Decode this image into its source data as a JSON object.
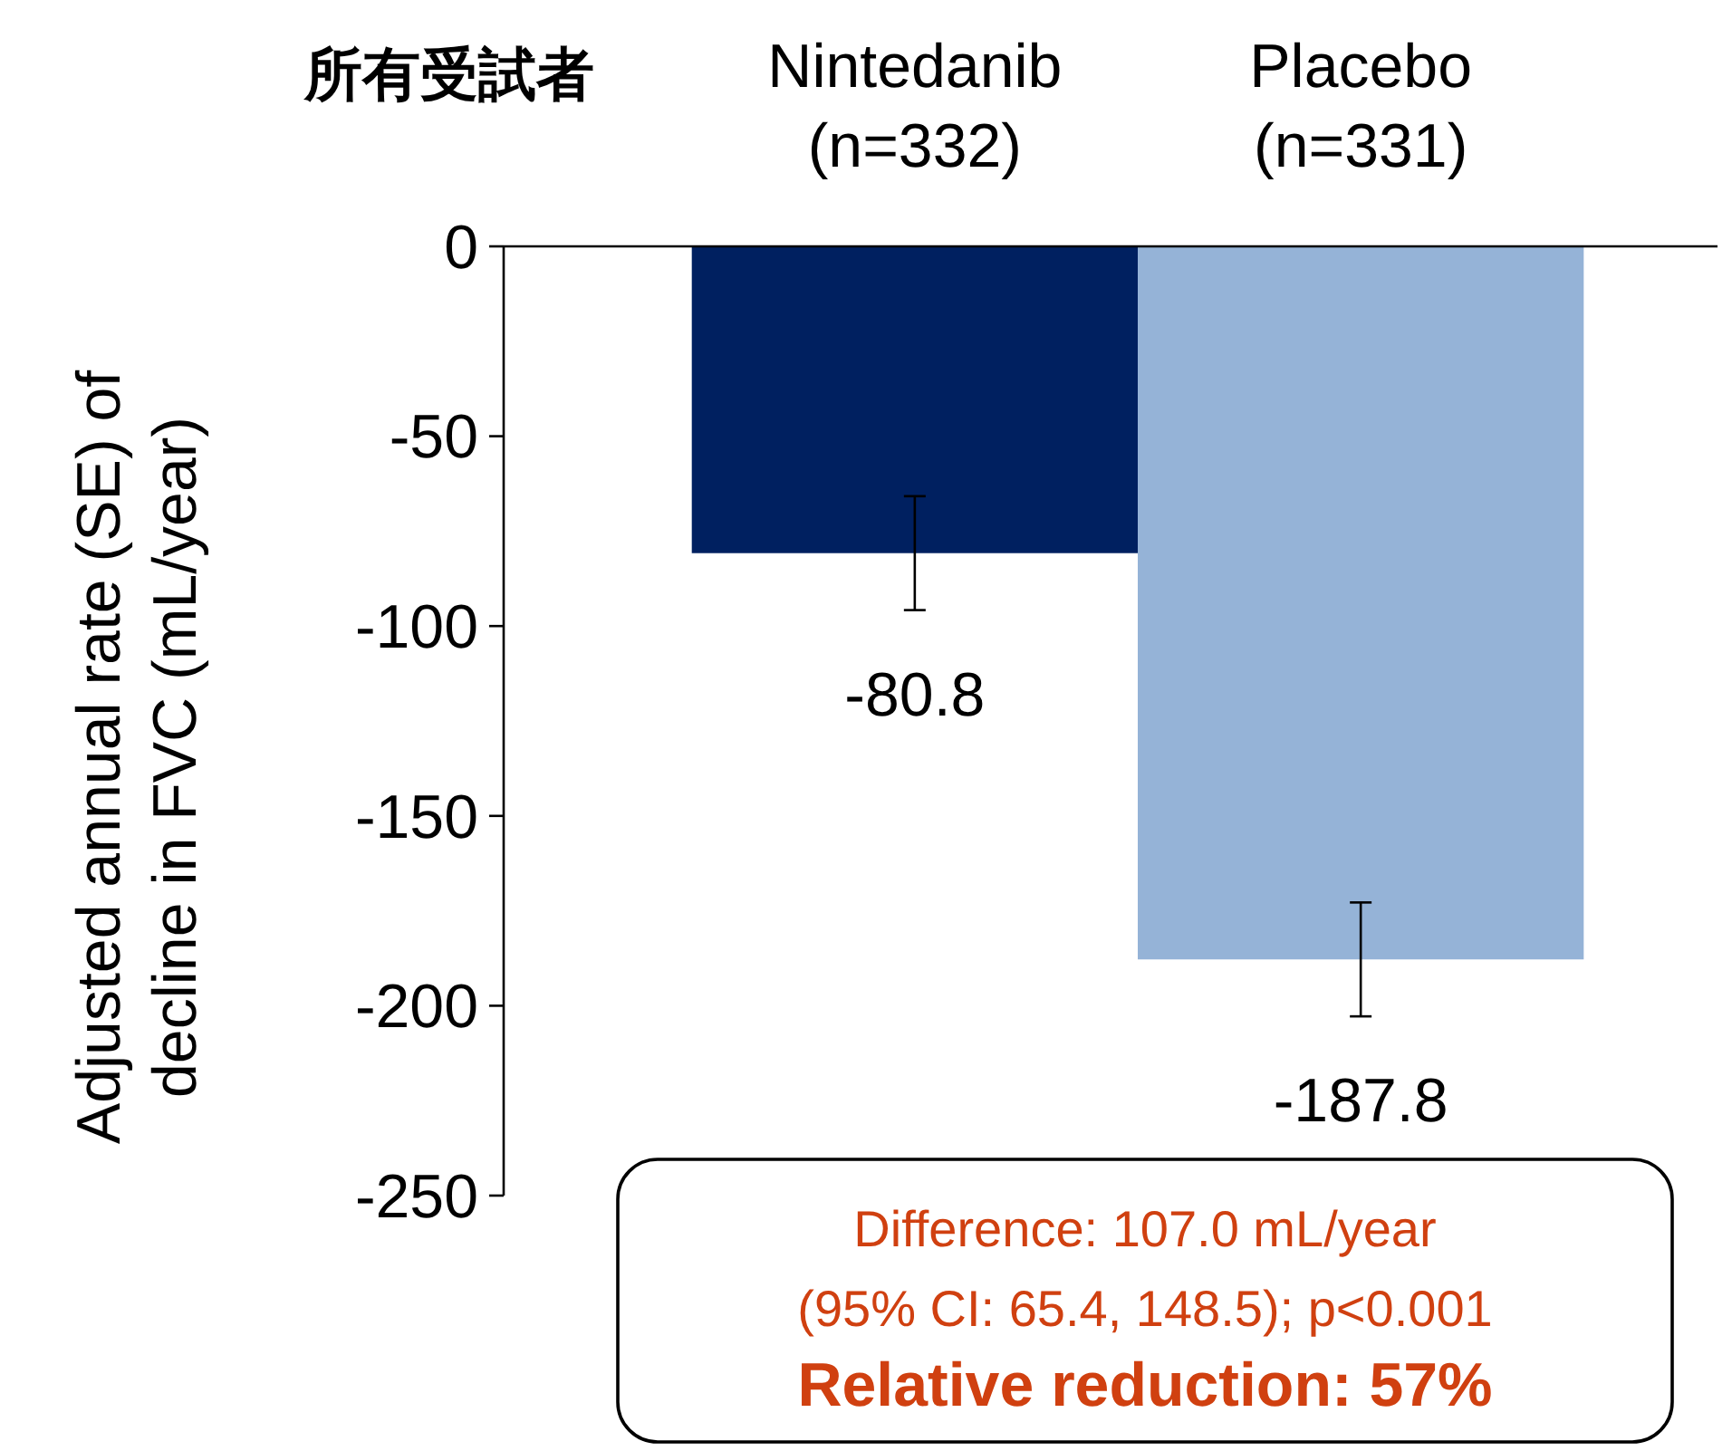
{
  "chart_data": {
    "type": "bar",
    "title": "所有受試者",
    "categories": [
      "Nintedanib\n(n=332)",
      "Placebo\n(n=331)"
    ],
    "values": [
      -80.8,
      -187.8
    ],
    "colors": [
      "#002060",
      "#95b3d7"
    ],
    "errors": [
      15,
      15
    ],
    "ylabel": "Adjusted annual rate (SE) of\ndecline in FVC (mL/year)",
    "ylim": [
      -250,
      0
    ],
    "yticks": [
      0,
      -50,
      -100,
      -150,
      -200,
      -250
    ],
    "data_labels": true,
    "grid": false,
    "annotations": [
      "Difference: 107.0 mL/year",
      "(95% CI: 65.4, 148.5); p<0.001",
      "Relative reduction: 57%"
    ]
  }
}
